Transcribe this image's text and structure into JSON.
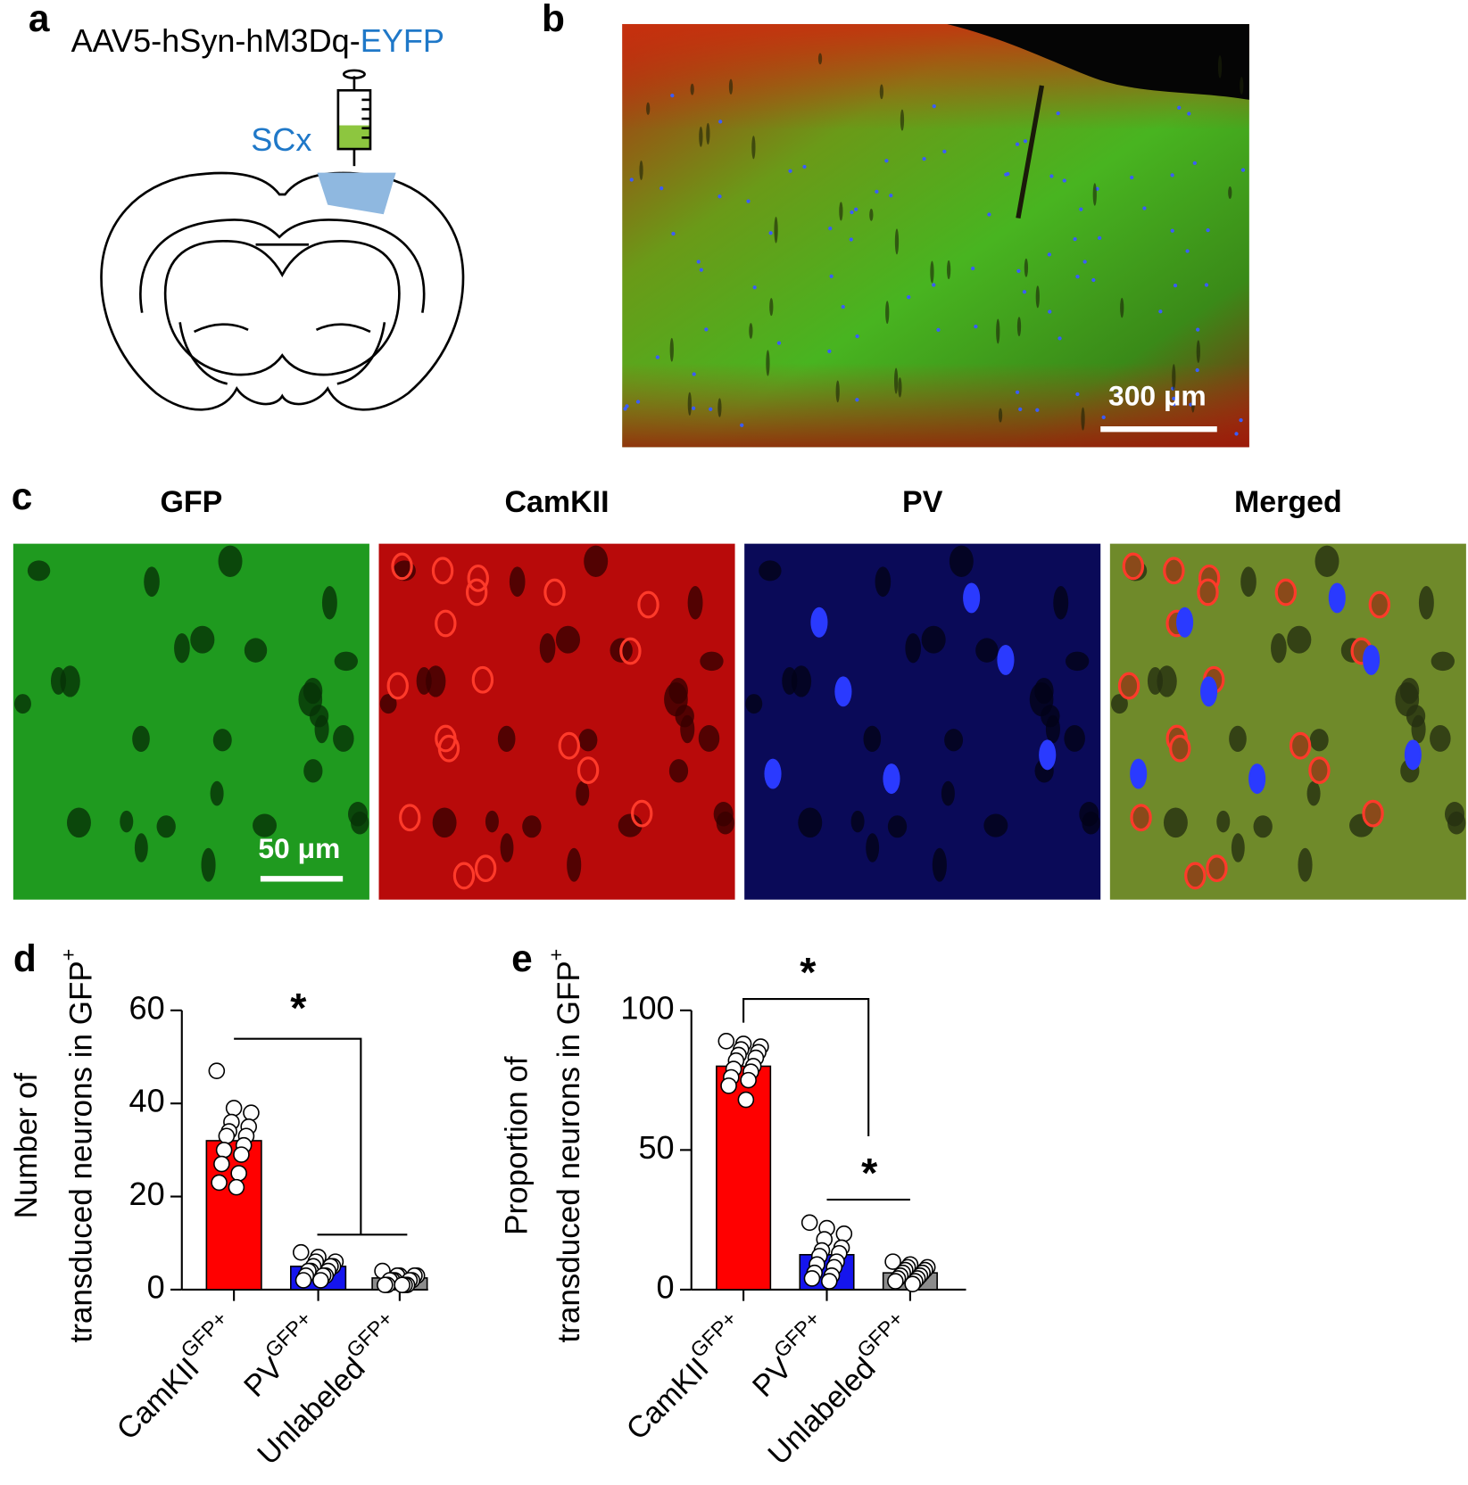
{
  "panel_labels": [
    "a",
    "b",
    "c",
    "d",
    "e"
  ],
  "schematic": {
    "construct": "AAV5-hSyn-hM3Dq-",
    "reporter": "EYFP",
    "region": "SCx"
  },
  "micrograph": {
    "scale_bar": "300 μm"
  },
  "channels": {
    "titles": [
      "GFP",
      "CamKII",
      "PV",
      "Merged"
    ],
    "scale_bar": "50 μm"
  },
  "chart_data": [
    {
      "type": "bar",
      "ylabel": {
        "lines": [
          "Number of",
          "transduced neurons in GFP"
        ],
        "sup": "+"
      },
      "categories": [
        {
          "text": "CamKII",
          "sup": "GFP+"
        },
        {
          "text": "PV",
          "sup": "GFP+"
        },
        {
          "text": "Unlabeled",
          "sup": "GFP+"
        }
      ],
      "values": [
        32,
        5,
        2.5
      ],
      "colors": [
        "#ff0000",
        "#1515ee",
        "#8c8c8c"
      ],
      "points": [
        [
          47,
          39,
          38,
          36,
          35,
          34,
          33,
          33,
          31,
          30,
          29,
          27,
          25,
          23,
          22
        ],
        [
          8,
          7,
          6,
          6,
          5,
          5,
          5,
          4,
          4,
          4,
          3,
          3,
          3,
          2,
          2
        ],
        [
          4,
          3,
          3,
          3,
          3,
          2,
          2,
          2,
          2,
          2,
          1,
          1,
          1,
          1,
          1
        ]
      ],
      "ylim": [
        0,
        60
      ],
      "yticks": [
        0,
        20,
        40,
        60
      ],
      "annotations": [
        "*"
      ]
    },
    {
      "type": "bar",
      "ylabel": {
        "lines": [
          "Proportion of",
          "transduced neurons in GFP"
        ],
        "sup": "+"
      },
      "categories": [
        {
          "text": "CamKII",
          "sup": "GFP+"
        },
        {
          "text": "PV",
          "sup": "GFP+"
        },
        {
          "text": "Unlabeled",
          "sup": "GFP+"
        }
      ],
      "values": [
        80,
        12.5,
        6
      ],
      "colors": [
        "#ff0000",
        "#1515ee",
        "#8c8c8c"
      ],
      "points": [
        [
          89,
          88,
          87,
          86,
          85,
          84,
          83,
          82,
          80,
          79,
          78,
          76,
          75,
          73,
          68
        ],
        [
          24,
          22,
          20,
          18,
          15,
          14,
          13,
          12,
          10,
          9,
          8,
          6,
          5,
          4,
          3
        ],
        [
          10,
          9,
          8,
          8,
          7,
          7,
          6,
          6,
          5,
          5,
          4,
          4,
          3,
          3,
          2
        ]
      ],
      "ylim": [
        0,
        100
      ],
      "yticks": [
        0,
        50,
        100
      ],
      "annotations": [
        "*",
        "*"
      ]
    }
  ]
}
